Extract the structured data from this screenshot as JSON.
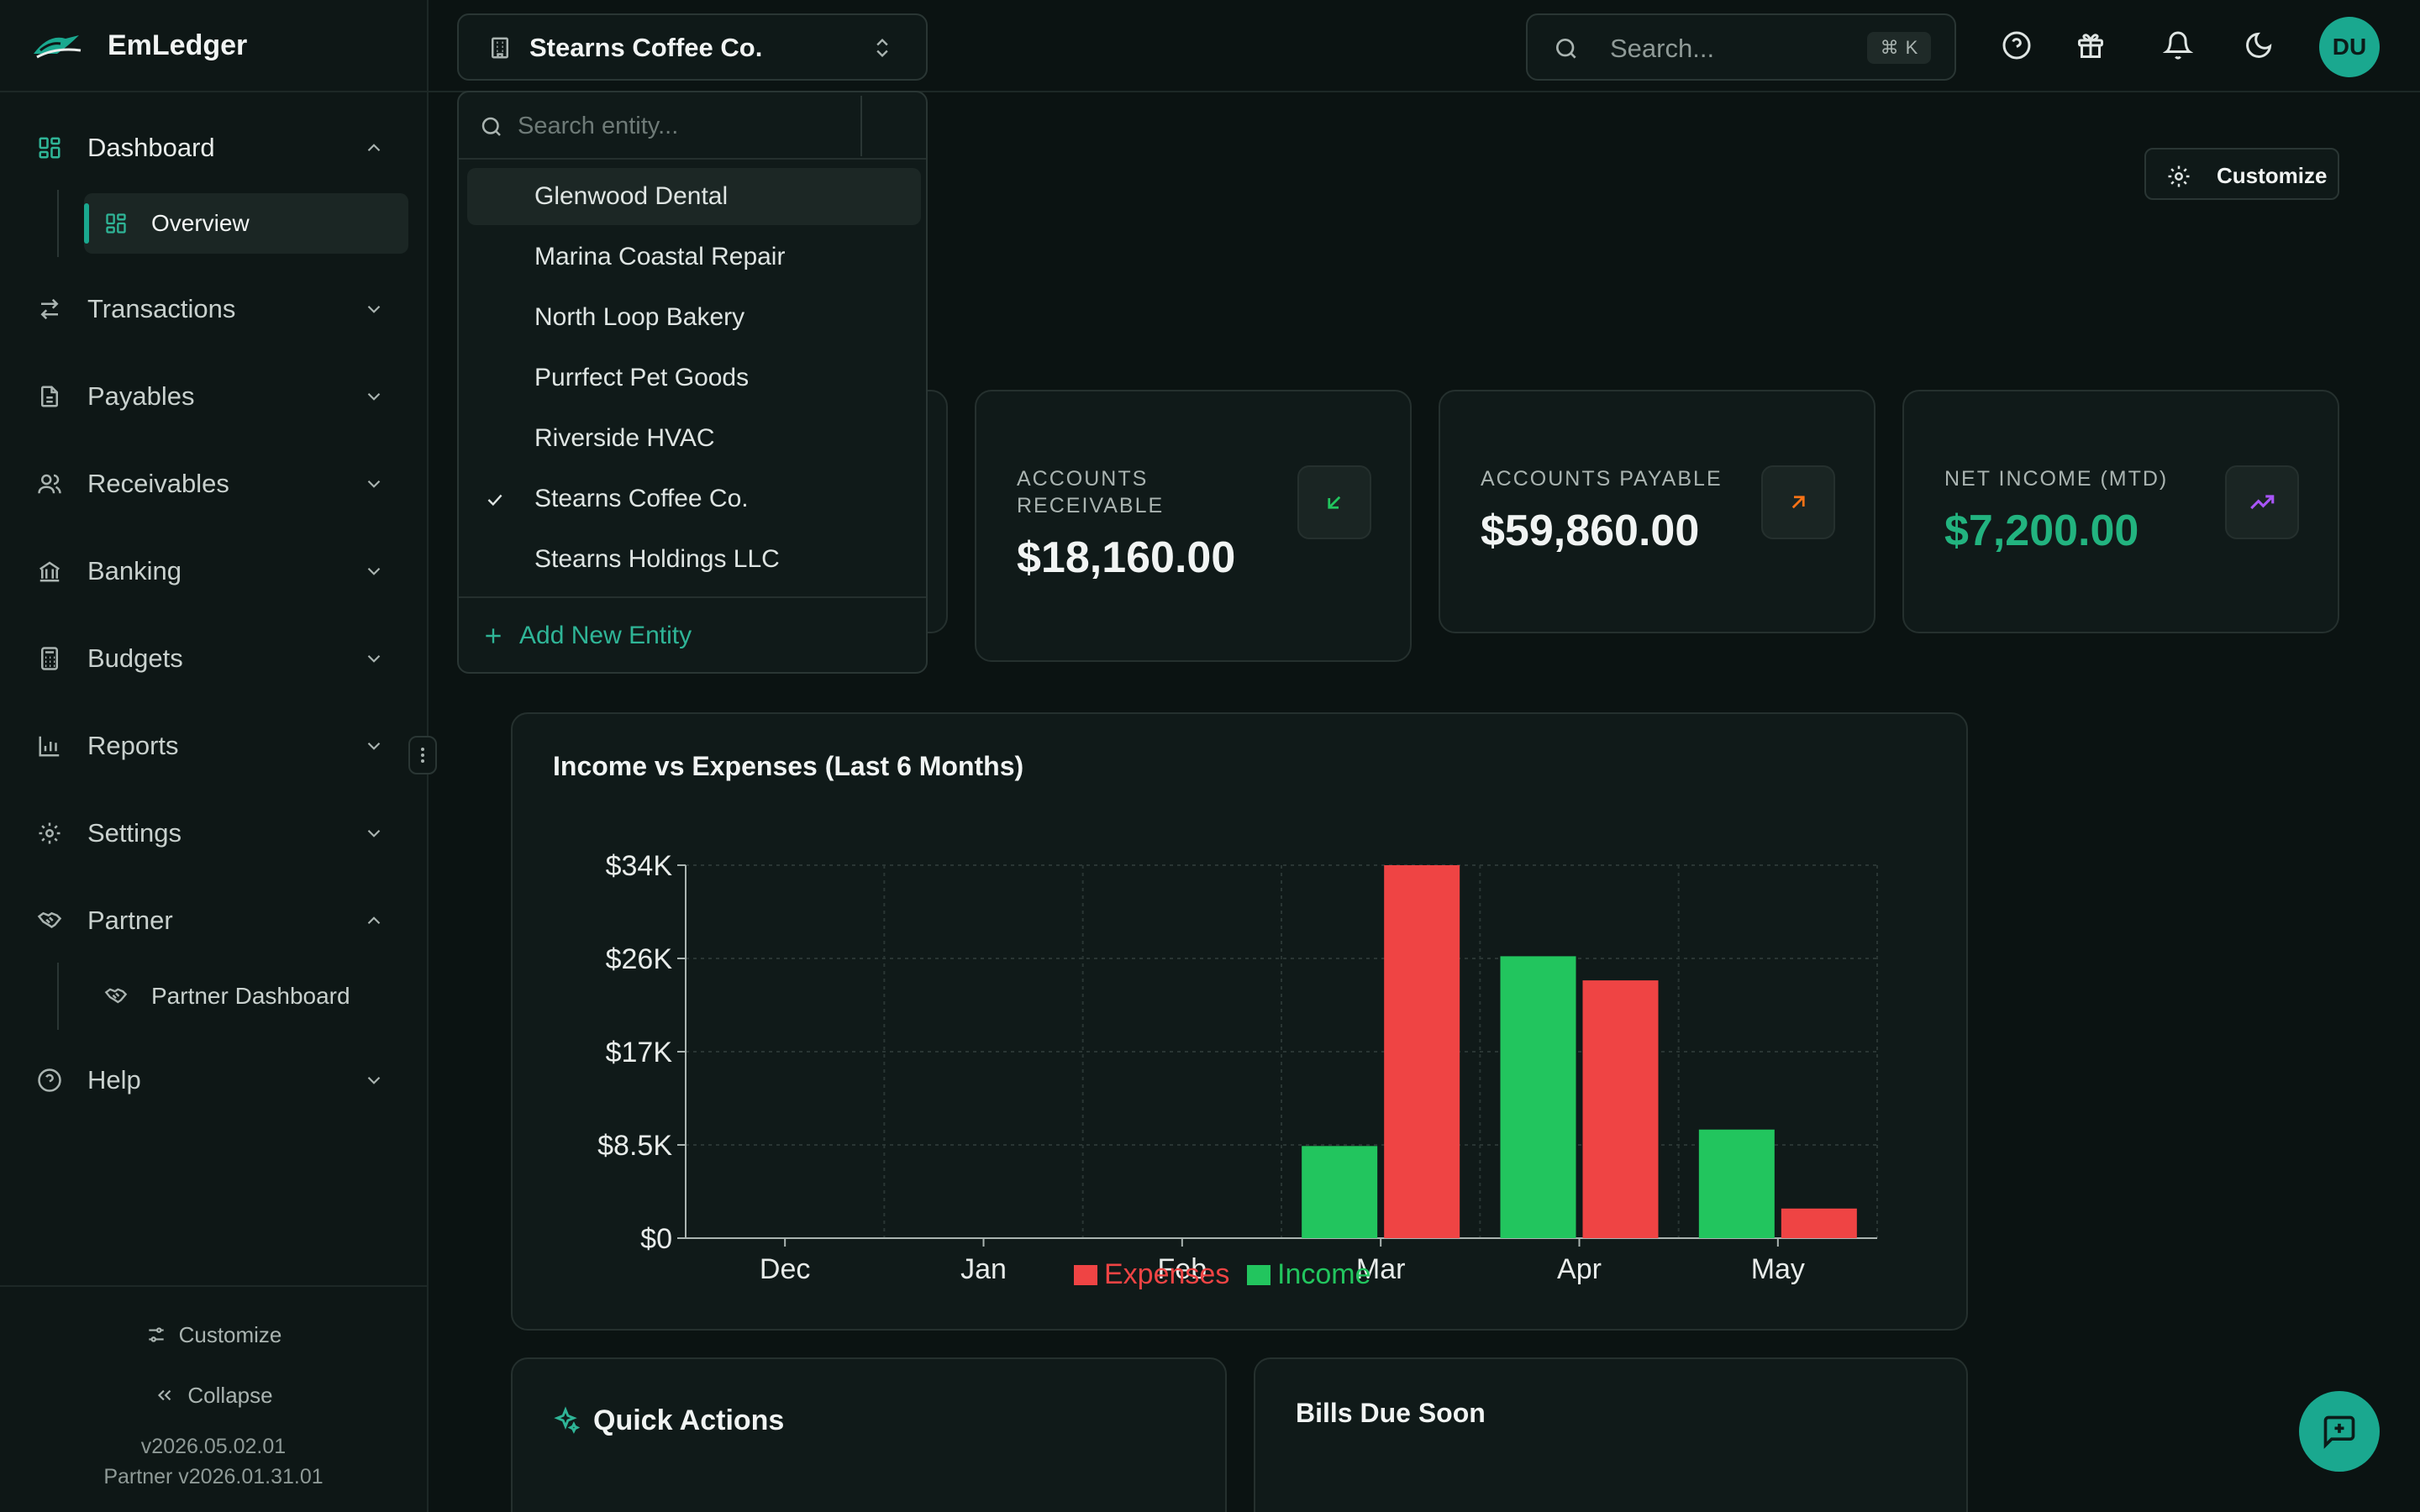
{
  "app": {
    "name": "EmLedger"
  },
  "sidebar": {
    "items": [
      {
        "label": "Dashboard",
        "icon": "dashboard-icon",
        "expanded": true
      },
      {
        "label": "Transactions",
        "icon": "transfer-icon",
        "expanded": false
      },
      {
        "label": "Payables",
        "icon": "document-icon",
        "expanded": false
      },
      {
        "label": "Receivables",
        "icon": "users-icon",
        "expanded": false
      },
      {
        "label": "Banking",
        "icon": "bank-icon",
        "expanded": false
      },
      {
        "label": "Budgets",
        "icon": "calculator-icon",
        "expanded": false
      },
      {
        "label": "Reports",
        "icon": "bar-chart-icon",
        "expanded": false
      },
      {
        "label": "Settings",
        "icon": "gear-icon",
        "expanded": false
      },
      {
        "label": "Partner",
        "icon": "handshake-icon",
        "expanded": true
      },
      {
        "label": "Help",
        "icon": "help-circle-icon",
        "expanded": false
      }
    ],
    "sub_dashboard": {
      "label": "Overview"
    },
    "sub_partner": {
      "label": "Partner Dashboard"
    },
    "footer": {
      "customize_label": "Customize",
      "collapse_label": "Collapse",
      "version": "v2026.05.02.01",
      "partner_version": "Partner v2026.01.31.01"
    }
  },
  "topbar": {
    "entity": "Stearns Coffee Co.",
    "search_placeholder": "Search...",
    "shortcut_mod": "⌘",
    "shortcut_key": "K",
    "avatar_initials": "DU"
  },
  "entity_dropdown": {
    "search_placeholder": "Search entity...",
    "options": [
      {
        "label": "Glenwood Dental",
        "selected": false
      },
      {
        "label": "Marina Coastal Repair",
        "selected": false
      },
      {
        "label": "North Loop Bakery",
        "selected": false
      },
      {
        "label": "Purrfect Pet Goods",
        "selected": false
      },
      {
        "label": "Riverside HVAC",
        "selected": false
      },
      {
        "label": "Stearns Coffee Co.",
        "selected": true
      },
      {
        "label": "Stearns Holdings LLC",
        "selected": false
      }
    ],
    "add_label": "Add New Entity"
  },
  "main": {
    "customize_label": "Customize",
    "kpis": [
      {
        "label": "ACCOUNTS RECEIVABLE",
        "value": "$18,160.00",
        "icon": "arrow-down-left-icon",
        "color": "#22c55e"
      },
      {
        "label": "ACCOUNTS PAYABLE",
        "value": "$59,860.00",
        "icon": "arrow-up-right-icon",
        "color": "#f97316"
      },
      {
        "label": "NET INCOME (MTD)",
        "value": "$7,200.00",
        "icon": "trending-up-icon",
        "color": "#a855f7"
      }
    ],
    "chart_title": "Income vs Expenses (Last 6 Months)",
    "quick_actions_title": "Quick Actions",
    "bills_title": "Bills Due Soon"
  },
  "chart_data": {
    "type": "bar",
    "categories": [
      "Dec",
      "Jan",
      "Feb",
      "Mar",
      "Apr",
      "May"
    ],
    "series": [
      {
        "name": "Income",
        "color": "#22c55e",
        "values": [
          0,
          0,
          0,
          8400,
          25700,
          9900
        ]
      },
      {
        "name": "Expenses",
        "color": "#ef4444",
        "values": [
          0,
          0,
          0,
          34000,
          23500,
          2700
        ]
      }
    ],
    "legend": [
      "Expenses",
      "Income"
    ],
    "ylim": [
      0,
      34000
    ],
    "yticks": [
      "$0",
      "$8.5K",
      "$17K",
      "$26K",
      "$34K"
    ],
    "ytick_values": [
      0,
      8500,
      17000,
      25500,
      34000
    ],
    "grid": true,
    "legend_position": "bottom"
  }
}
